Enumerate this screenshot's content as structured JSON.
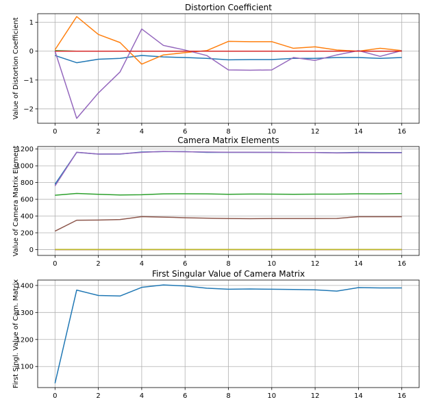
{
  "chart_data": [
    {
      "type": "line",
      "title": "Distortion Coefficient",
      "xlabel": "",
      "ylabel": "Value of Distortion Coefficient",
      "xlim": [
        -0.8,
        16.8
      ],
      "ylim": [
        -2.5,
        1.3
      ],
      "xticks": [
        0,
        2,
        4,
        6,
        8,
        10,
        12,
        14,
        16
      ],
      "yticks": [
        -2,
        -1,
        0,
        1
      ],
      "ytick_labels": [
        "−2",
        "−1",
        "0",
        "1"
      ],
      "grid": true,
      "x": [
        0,
        1,
        2,
        3,
        4,
        5,
        6,
        7,
        8,
        9,
        10,
        11,
        12,
        13,
        14,
        15,
        16
      ],
      "series": [
        {
          "color": "#1f77b4",
          "values": [
            -0.15,
            -0.4,
            -0.28,
            -0.25,
            -0.15,
            -0.2,
            -0.22,
            -0.25,
            -0.3,
            -0.29,
            -0.29,
            -0.25,
            -0.25,
            -0.22,
            -0.22,
            -0.25,
            -0.22
          ]
        },
        {
          "color": "#ff7f0e",
          "values": [
            0.05,
            1.2,
            0.58,
            0.3,
            -0.45,
            -0.13,
            -0.05,
            0.02,
            0.34,
            0.33,
            0.33,
            0.1,
            0.15,
            0.04,
            0.0,
            0.1,
            0.02
          ]
        },
        {
          "color": "#2ca02c",
          "values": [
            0.02,
            0.0,
            0.0,
            0.0,
            0.0,
            0.0,
            0.0,
            0.0,
            0.0,
            0.0,
            0.0,
            0.0,
            0.0,
            0.0,
            0.0,
            0.0,
            0.0
          ]
        },
        {
          "color": "#9467bd",
          "values": [
            0.0,
            -2.33,
            -1.45,
            -0.72,
            0.77,
            0.2,
            0.04,
            -0.15,
            -0.65,
            -0.66,
            -0.65,
            -0.22,
            -0.32,
            -0.13,
            0.02,
            -0.18,
            0.02
          ]
        },
        {
          "color": "#d62728",
          "values": [
            0.0,
            0.0,
            0.0,
            0.0,
            0.0,
            0.0,
            0.0,
            0.0,
            0.0,
            0.0,
            0.0,
            0.0,
            0.0,
            0.0,
            0.0,
            0.0,
            0.0
          ]
        }
      ]
    },
    {
      "type": "line",
      "title": "Camera Matrix Elements",
      "xlabel": "",
      "ylabel": "Value of Camera Matrix Element",
      "xlim": [
        -0.8,
        16.8
      ],
      "ylim": [
        -70,
        1230
      ],
      "xticks": [
        0,
        2,
        4,
        6,
        8,
        10,
        12,
        14,
        16
      ],
      "yticks": [
        0,
        200,
        400,
        600,
        800,
        1000,
        1200
      ],
      "ytick_labels": [
        "0",
        "200",
        "400",
        "600",
        "800",
        "1000",
        "1200"
      ],
      "grid": true,
      "x": [
        0,
        1,
        2,
        3,
        4,
        5,
        6,
        7,
        8,
        9,
        10,
        11,
        12,
        13,
        14,
        15,
        16
      ],
      "series": [
        {
          "color": "#1f77b4",
          "values": [
            780,
            1160,
            1140,
            1140,
            1165,
            1170,
            1170,
            1160,
            1160,
            1160,
            1160,
            1158,
            1158,
            1155,
            1160,
            1158,
            1158
          ]
        },
        {
          "color": "#ff7f0e",
          "values": [
            0,
            0,
            0,
            0,
            0,
            0,
            0,
            0,
            0,
            0,
            0,
            0,
            0,
            0,
            0,
            0,
            0
          ]
        },
        {
          "color": "#2ca02c",
          "values": [
            648,
            670,
            660,
            652,
            655,
            665,
            666,
            665,
            660,
            663,
            662,
            660,
            662,
            662,
            666,
            665,
            668
          ]
        },
        {
          "color": "#d62728",
          "values": [
            0,
            0,
            0,
            0,
            0,
            0,
            0,
            0,
            0,
            0,
            0,
            0,
            0,
            0,
            0,
            0,
            0
          ]
        },
        {
          "color": "#9467bd",
          "values": [
            760,
            1162,
            1140,
            1142,
            1160,
            1172,
            1168,
            1165,
            1162,
            1162,
            1160,
            1158,
            1158,
            1153,
            1156,
            1155,
            1155
          ]
        },
        {
          "color": "#8c564b",
          "values": [
            220,
            350,
            352,
            358,
            393,
            387,
            380,
            375,
            370,
            368,
            370,
            370,
            370,
            372,
            392,
            392,
            392
          ]
        },
        {
          "color": "#e377c2",
          "values": [
            0,
            0,
            0,
            0,
            0,
            0,
            0,
            0,
            0,
            0,
            0,
            0,
            0,
            0,
            0,
            0,
            0
          ]
        },
        {
          "color": "#7f7f7f",
          "values": [
            0,
            0,
            0,
            0,
            0,
            0,
            0,
            0,
            0,
            0,
            0,
            0,
            0,
            0,
            0,
            0,
            0
          ]
        },
        {
          "color": "#bcbd22",
          "values": [
            1,
            1,
            1,
            1,
            1,
            1,
            1,
            1,
            1,
            1,
            1,
            1,
            1,
            1,
            1,
            1,
            1
          ]
        }
      ]
    },
    {
      "type": "line",
      "title": "First Singular Value of Camera Matrix",
      "xlabel": "",
      "ylabel": "First Singl. Value of Cam. Matrix",
      "xlim": [
        -0.8,
        16.8
      ],
      "ylim": [
        1022,
        1420
      ],
      "xticks": [
        0,
        2,
        4,
        6,
        8,
        10,
        12,
        14,
        16
      ],
      "yticks": [
        1100,
        1200,
        1300,
        1400
      ],
      "ytick_labels": [
        "1100",
        "1200",
        "1300",
        "1400"
      ],
      "grid": true,
      "x": [
        0,
        1,
        2,
        3,
        4,
        5,
        6,
        7,
        8,
        9,
        10,
        11,
        12,
        13,
        14,
        15,
        16
      ],
      "series": [
        {
          "color": "#1f77b4",
          "values": [
            1038,
            1383,
            1363,
            1361,
            1393,
            1402,
            1398,
            1390,
            1386,
            1387,
            1386,
            1385,
            1384,
            1379,
            1392,
            1391,
            1391
          ]
        }
      ]
    }
  ]
}
